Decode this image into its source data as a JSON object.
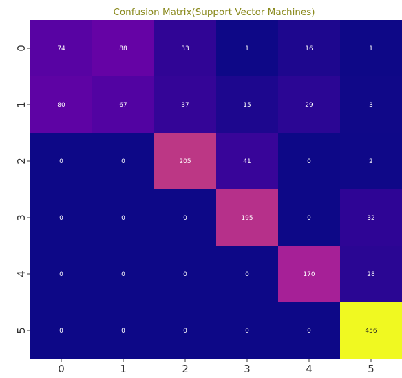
{
  "chart_data": {
    "type": "heatmap",
    "title": "Confusion Matrix(Support Vector Machines)",
    "x_categories": [
      "0",
      "1",
      "2",
      "3",
      "4",
      "5"
    ],
    "y_categories": [
      "0",
      "1",
      "2",
      "3",
      "4",
      "5"
    ],
    "values": [
      [
        74,
        88,
        33,
        1,
        16,
        1
      ],
      [
        80,
        67,
        37,
        15,
        29,
        3
      ],
      [
        0,
        0,
        205,
        41,
        0,
        2
      ],
      [
        0,
        0,
        0,
        195,
        0,
        32
      ],
      [
        0,
        0,
        0,
        0,
        170,
        28
      ],
      [
        0,
        0,
        0,
        0,
        0,
        456
      ]
    ],
    "colormap": "plasma",
    "vmin": 0,
    "vmax": 456,
    "colorbar": false,
    "grid": false
  },
  "colors": {
    "title": "#8a8a1e",
    "tick_label": "#333333"
  }
}
